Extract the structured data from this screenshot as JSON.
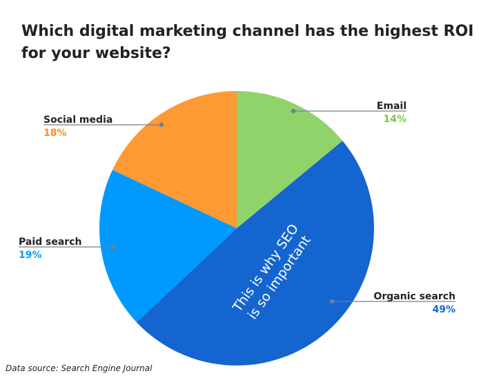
{
  "header": {
    "title": "Which digital marketing channel has the highest ROI for your website?"
  },
  "footer": {
    "source": "Data source: Search Engine Journal"
  },
  "chart_data": {
    "type": "pie",
    "title": "Which digital marketing channel has the highest ROI for your website?",
    "slices": [
      {
        "name": "Email",
        "value": 14,
        "label": "14%",
        "color": "#90d36a",
        "label_color": "#7cc644"
      },
      {
        "name": "Organic search",
        "value": 49,
        "label": "49%",
        "color": "#1565d0",
        "label_color": "#1565d0"
      },
      {
        "name": "Paid search",
        "value": 19,
        "label": "19%",
        "color": "#0099ff",
        "label_color": "#0099ff"
      },
      {
        "name": "Social media",
        "value": 18,
        "label": "18%",
        "color": "#ff9933",
        "label_color": "#ff8c1a"
      }
    ],
    "annotation": [
      "This is why SEO",
      "is so important"
    ],
    "leader_color": "#6b8196"
  }
}
